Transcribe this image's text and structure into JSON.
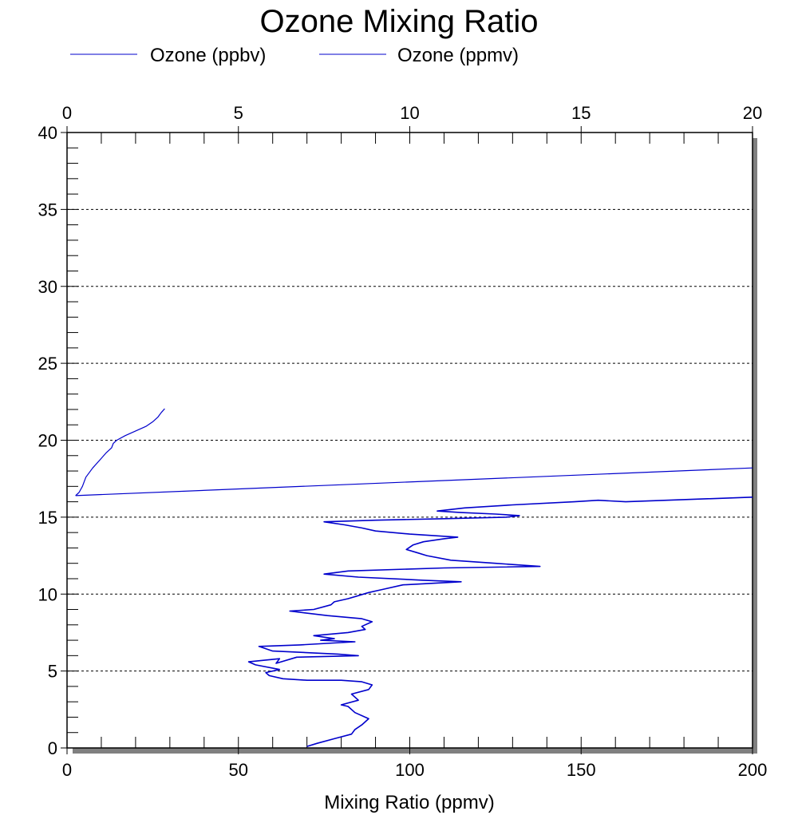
{
  "chart_data": {
    "type": "line",
    "title": "Ozone Mixing Ratio",
    "xlabel": "Mixing Ratio (ppmv)",
    "ylabel": "",
    "x_bottom": {
      "range": [
        0,
        200
      ],
      "ticks": [
        0,
        50,
        100,
        150,
        200
      ]
    },
    "x_top": {
      "range": [
        0,
        20
      ],
      "ticks": [
        0,
        5,
        10,
        15,
        20
      ]
    },
    "y": {
      "range": [
        0,
        40
      ],
      "ticks": [
        0,
        5,
        10,
        15,
        20,
        25,
        30,
        35,
        40
      ]
    },
    "grid": {
      "y_major_dashed": true
    },
    "legend_placement": "top-left",
    "series_colors": {
      "ppbv": "#0000cc",
      "ppmv": "#0000cc"
    },
    "series": [
      {
        "name": "Ozone (ppbv)",
        "axis": "bottom",
        "points": [
          [
            70,
            0.1
          ],
          [
            73,
            0.3
          ],
          [
            78,
            0.6
          ],
          [
            83,
            0.9
          ],
          [
            84,
            1.2
          ],
          [
            86,
            1.5
          ],
          [
            88,
            1.9
          ],
          [
            84,
            2.3
          ],
          [
            82,
            2.7
          ],
          [
            80,
            2.8
          ],
          [
            85,
            3.1
          ],
          [
            83,
            3.5
          ],
          [
            88,
            3.8
          ],
          [
            89,
            4.1
          ],
          [
            86,
            4.3
          ],
          [
            80,
            4.4
          ],
          [
            70,
            4.4
          ],
          [
            63,
            4.5
          ],
          [
            59,
            4.7
          ],
          [
            58,
            4.9
          ],
          [
            62,
            5.1
          ],
          [
            55,
            5.4
          ],
          [
            53,
            5.6
          ],
          [
            62,
            5.8
          ],
          [
            61,
            5.5
          ],
          [
            67,
            5.9
          ],
          [
            85,
            6.0
          ],
          [
            79,
            6.1
          ],
          [
            60,
            6.3
          ],
          [
            56,
            6.6
          ],
          [
            68,
            6.7
          ],
          [
            84,
            6.9
          ],
          [
            74,
            7.0
          ],
          [
            78,
            7.1
          ],
          [
            72,
            7.3
          ],
          [
            82,
            7.5
          ],
          [
            87,
            7.7
          ],
          [
            86,
            7.9
          ],
          [
            89,
            8.2
          ],
          [
            86,
            8.4
          ],
          [
            76,
            8.6
          ],
          [
            65,
            8.9
          ],
          [
            72,
            9.0
          ],
          [
            77,
            9.3
          ],
          [
            78,
            9.5
          ],
          [
            82,
            9.7
          ],
          [
            85,
            9.9
          ],
          [
            88,
            10.1
          ],
          [
            92,
            10.3
          ],
          [
            98,
            10.6
          ],
          [
            115,
            10.8
          ],
          [
            104,
            10.9
          ],
          [
            85,
            11.1
          ],
          [
            75,
            11.3
          ],
          [
            82,
            11.5
          ],
          [
            110,
            11.7
          ],
          [
            138,
            11.8
          ],
          [
            125,
            12.0
          ],
          [
            112,
            12.2
          ],
          [
            105,
            12.5
          ],
          [
            102,
            12.7
          ],
          [
            99,
            12.9
          ],
          [
            101,
            13.2
          ],
          [
            104,
            13.4
          ],
          [
            110,
            13.6
          ],
          [
            114,
            13.7
          ],
          [
            100,
            13.9
          ],
          [
            90,
            14.1
          ],
          [
            86,
            14.3
          ],
          [
            81,
            14.5
          ],
          [
            75,
            14.7
          ],
          [
            90,
            14.8
          ],
          [
            110,
            14.9
          ],
          [
            128,
            15.0
          ],
          [
            132,
            15.1
          ],
          [
            125,
            15.2
          ],
          [
            115,
            15.3
          ],
          [
            108,
            15.4
          ],
          [
            116,
            15.6
          ],
          [
            130,
            15.8
          ],
          [
            148,
            16.0
          ],
          [
            155,
            16.1
          ],
          [
            163,
            16.0
          ],
          [
            200,
            16.3
          ]
        ]
      },
      {
        "name": "Ozone (ppmv)",
        "axis": "top",
        "points": [
          [
            0.25,
            16.4
          ],
          [
            0.35,
            16.6
          ],
          [
            0.45,
            17.0
          ],
          [
            0.55,
            17.6
          ],
          [
            0.75,
            18.2
          ],
          [
            0.95,
            18.7
          ],
          [
            1.15,
            19.2
          ],
          [
            1.3,
            19.5
          ],
          [
            1.35,
            19.8
          ],
          [
            1.45,
            20.0
          ],
          [
            1.7,
            20.3
          ],
          [
            2.0,
            20.6
          ],
          [
            2.3,
            20.9
          ],
          [
            2.5,
            21.2
          ],
          [
            2.65,
            21.5
          ],
          [
            2.75,
            21.8
          ],
          [
            2.85,
            22.05
          ]
        ]
      },
      {
        "name": "",
        "axis": "top",
        "points": [
          [
            0.25,
            16.4
          ],
          [
            20.0,
            18.2
          ]
        ]
      }
    ]
  },
  "legend": [
    {
      "label": "Ozone (ppbv)",
      "color": "#0000cc"
    },
    {
      "label": "Ozone (ppmv)",
      "color": "#0000cc"
    }
  ]
}
